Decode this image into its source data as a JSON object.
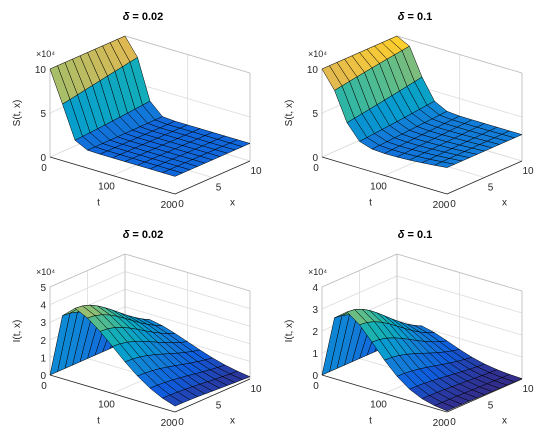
{
  "chart_data": [
    {
      "type": "surface",
      "title_symbol": "δ",
      "title_value": "= 0.02",
      "xlabel": "t",
      "ylabel": "x",
      "zlabel": "S(t, x)",
      "t_ticks": [
        "0",
        "100",
        "200"
      ],
      "x_ticks": [
        "0",
        "5",
        "10"
      ],
      "z_ticks": [
        "0",
        "5",
        "10"
      ],
      "z_multiplier": "×10⁴",
      "t_range": [
        0,
        200
      ],
      "x_range": [
        0,
        10
      ],
      "z_range": [
        0,
        10
      ],
      "z_units": "×10⁴",
      "t": [
        0,
        20,
        40,
        60,
        80,
        100,
        120,
        140,
        160,
        180,
        200
      ],
      "x": [
        0,
        1,
        2,
        3,
        4,
        5,
        6,
        7,
        8,
        9,
        10
      ],
      "peak_value": 10,
      "description_values": {
        "initial_S": 10,
        "final_S": 2
      }
    },
    {
      "type": "surface",
      "title_symbol": "δ",
      "title_value": "= 0.1",
      "xlabel": "t",
      "ylabel": "x",
      "zlabel": "S(t, x)",
      "t_ticks": [
        "0",
        "100",
        "200"
      ],
      "x_ticks": [
        "0",
        "5",
        "10"
      ],
      "z_ticks": [
        "0",
        "5",
        "10"
      ],
      "z_multiplier": "×10⁴",
      "t_range": [
        0,
        200
      ],
      "x_range": [
        0,
        10
      ],
      "z_range": [
        0,
        10
      ],
      "t": [
        0,
        20,
        40,
        60,
        80,
        100,
        120,
        140,
        160,
        180,
        200
      ],
      "x": [
        0,
        1,
        2,
        3,
        4,
        5,
        6,
        7,
        8,
        9,
        10
      ],
      "peak_value": 10,
      "description_values": {
        "initial_S": 10,
        "final_S": 3
      }
    },
    {
      "type": "surface",
      "title_symbol": "δ",
      "title_value": "= 0.02",
      "xlabel": "t",
      "ylabel": "x",
      "zlabel": "I(t, x)",
      "t_ticks": [
        "0",
        "100",
        "200"
      ],
      "x_ticks": [
        "0",
        "5",
        "10"
      ],
      "z_ticks": [
        "0",
        "1",
        "2",
        "3",
        "4",
        "5"
      ],
      "z_multiplier": "×10⁴",
      "t_range": [
        0,
        200
      ],
      "x_range": [
        0,
        10
      ],
      "z_range": [
        0,
        5
      ],
      "t": [
        0,
        20,
        40,
        60,
        80,
        100,
        120,
        140,
        160,
        180,
        200
      ],
      "x": [
        0,
        1,
        2,
        3,
        4,
        5,
        6,
        7,
        8,
        9,
        10
      ],
      "peak_value": 4.2,
      "description_values": {
        "initial_I": 0,
        "peak_I": 4.2
      }
    },
    {
      "type": "surface",
      "title_symbol": "δ",
      "title_value": "= 0.1",
      "xlabel": "t",
      "ylabel": "x",
      "zlabel": "I(t, x)",
      "t_ticks": [
        "0",
        "100",
        "200"
      ],
      "x_ticks": [
        "0",
        "5",
        "10"
      ],
      "z_ticks": [
        "0",
        "1",
        "2",
        "3",
        "4"
      ],
      "z_multiplier": "×10⁴",
      "t_range": [
        0,
        200
      ],
      "x_range": [
        0,
        10
      ],
      "z_range": [
        0,
        4
      ],
      "t": [
        0,
        20,
        40,
        60,
        80,
        100,
        120,
        140,
        160,
        180,
        200
      ],
      "x": [
        0,
        1,
        2,
        3,
        4,
        5,
        6,
        7,
        8,
        9,
        10
      ],
      "peak_value": 3.3,
      "description_values": {
        "initial_I": 0,
        "peak_I": 3.3
      }
    }
  ]
}
